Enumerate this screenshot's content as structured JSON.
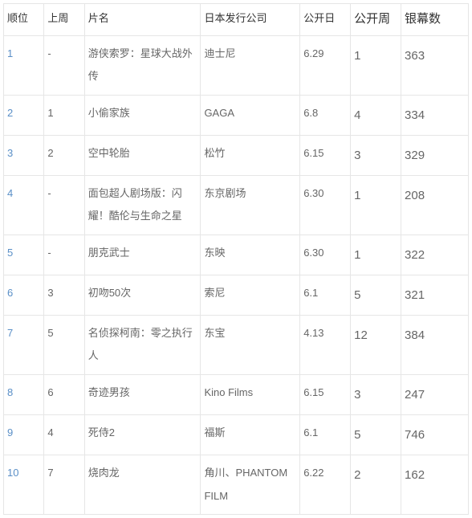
{
  "table": {
    "headers": {
      "rank": "顺位",
      "last_week": "上周",
      "title": "片名",
      "distributor": "日本发行公司",
      "open_date": "公开日",
      "open_week": "公开周",
      "screens": "银幕数"
    },
    "rows": [
      {
        "rank": "1",
        "last_week": "-",
        "title": "游侠索罗：星球大战外传",
        "distributor": "迪士尼",
        "open_date": "6.29",
        "open_week": "1",
        "screens": "363"
      },
      {
        "rank": "2",
        "last_week": "1",
        "title": "小偷家族",
        "distributor": "GAGA",
        "open_date": "6.8",
        "open_week": "4",
        "screens": "334"
      },
      {
        "rank": "3",
        "last_week": "2",
        "title": "空中轮胎",
        "distributor": "松竹",
        "open_date": "6.15",
        "open_week": "3",
        "screens": "329"
      },
      {
        "rank": "4",
        "last_week": "-",
        "title": "面包超人剧场版：闪耀！酷伦与生命之星",
        "distributor": "东京剧场",
        "open_date": "6.30",
        "open_week": "1",
        "screens": "208"
      },
      {
        "rank": "5",
        "last_week": "-",
        "title": "朋克武士",
        "distributor": "东映",
        "open_date": "6.30",
        "open_week": "1",
        "screens": "322"
      },
      {
        "rank": "6",
        "last_week": "3",
        "title": "初吻50次",
        "distributor": "索尼",
        "open_date": "6.1",
        "open_week": "5",
        "screens": "321"
      },
      {
        "rank": "7",
        "last_week": "5",
        "title": "名侦探柯南：零之执行人",
        "distributor": "东宝",
        "open_date": "4.13",
        "open_week": "12",
        "screens": "384"
      },
      {
        "rank": "8",
        "last_week": "6",
        "title": "奇迹男孩",
        "distributor": "Kino Films",
        "open_date": "6.15",
        "open_week": "3",
        "screens": "247"
      },
      {
        "rank": "9",
        "last_week": "4",
        "title": "死侍2",
        "distributor": "福斯",
        "open_date": "6.1",
        "open_week": "5",
        "screens": "746"
      },
      {
        "rank": "10",
        "last_week": "7",
        "title": "烧肉龙",
        "distributor": "角川、PHANTOM FILM",
        "open_date": "6.22",
        "open_week": "2",
        "screens": "162"
      }
    ],
    "style": {
      "border_color": "#e6e6e6",
      "header_color": "#333333",
      "cell_color": "#666666",
      "rank_color": "#5a8fc7",
      "font_size_normal": 13,
      "font_size_large": 15,
      "background": "#ffffff"
    }
  }
}
